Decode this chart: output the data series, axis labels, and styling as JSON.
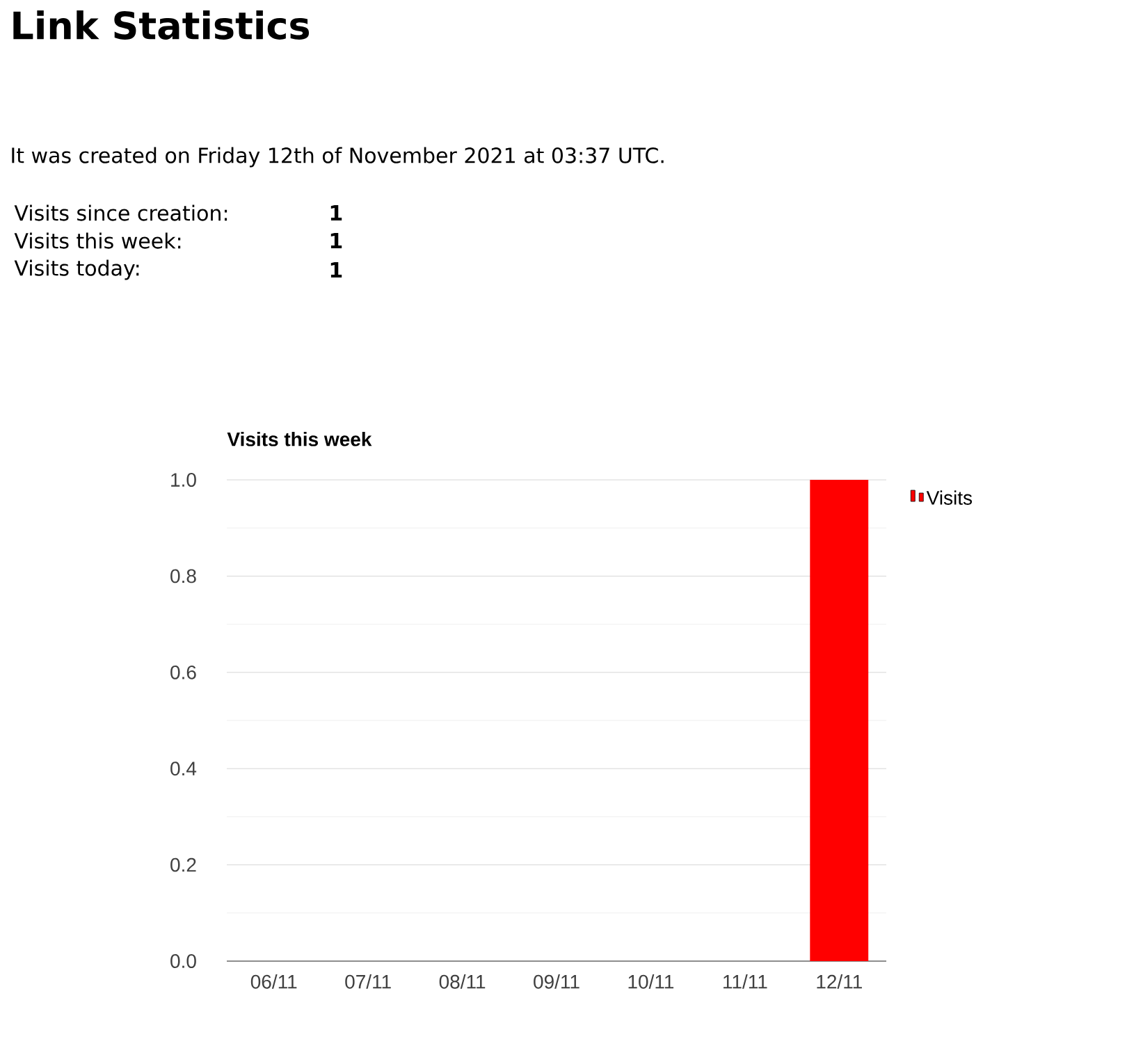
{
  "chart_data": {
    "type": "bar",
    "title": "Visits this week",
    "categories": [
      "06/11",
      "07/11",
      "08/11",
      "09/11",
      "10/11",
      "11/11",
      "12/11"
    ],
    "series": [
      {
        "name": "Visits",
        "color": "#ff0000",
        "values": [
          0,
          0,
          0,
          0,
          0,
          0,
          1
        ]
      }
    ],
    "ylim": [
      0,
      1
    ],
    "yticks": [
      {
        "value": 0,
        "label": "0.0"
      },
      0.2,
      0.4,
      0.6,
      0.8,
      {
        "value": 1,
        "label": "1.0"
      }
    ],
    "grid": "y",
    "legend": "right",
    "annotations": [
      "Link Statistics",
      "It was created on Friday 12th of November 2021 at 03:37 UTC.",
      "Visits since creation:",
      "1",
      "Visits this week:",
      "1",
      "Visits today:",
      "1"
    ]
  }
}
